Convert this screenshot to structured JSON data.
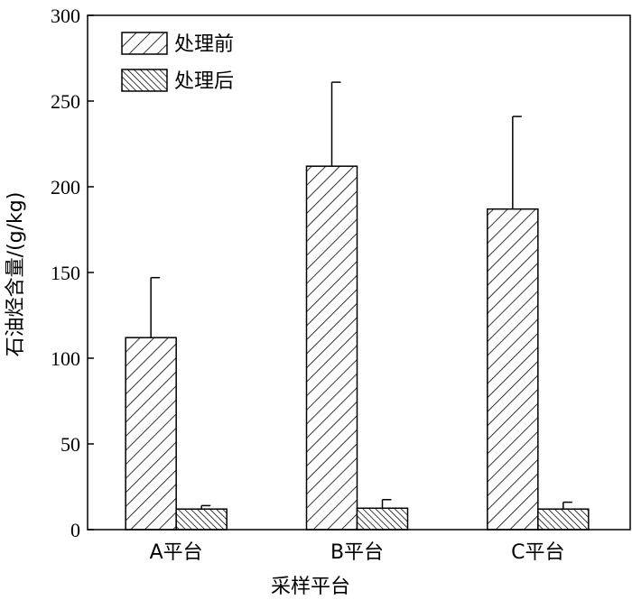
{
  "chart_data": {
    "type": "bar",
    "title": "",
    "xlabel": "采样平台",
    "ylabel": "石油烃含量/(g/kg)",
    "ylim": [
      0,
      300
    ],
    "yticks": [
      0,
      50,
      100,
      150,
      200,
      250,
      300
    ],
    "categories": [
      "A平台",
      "B平台",
      "C平台"
    ],
    "legend_position": "top-left",
    "series": [
      {
        "name": "处理前",
        "pattern": "forward-diagonal-hatch",
        "values": [
          112,
          212,
          187
        ],
        "errors": [
          35,
          49,
          54
        ]
      },
      {
        "name": "处理后",
        "pattern": "dense-back-diagonal-hatch",
        "values": [
          12,
          12.5,
          12
        ],
        "errors": [
          2,
          5,
          4
        ]
      }
    ],
    "colors": {
      "stroke": "#000000",
      "fill": "#ffffff"
    }
  }
}
